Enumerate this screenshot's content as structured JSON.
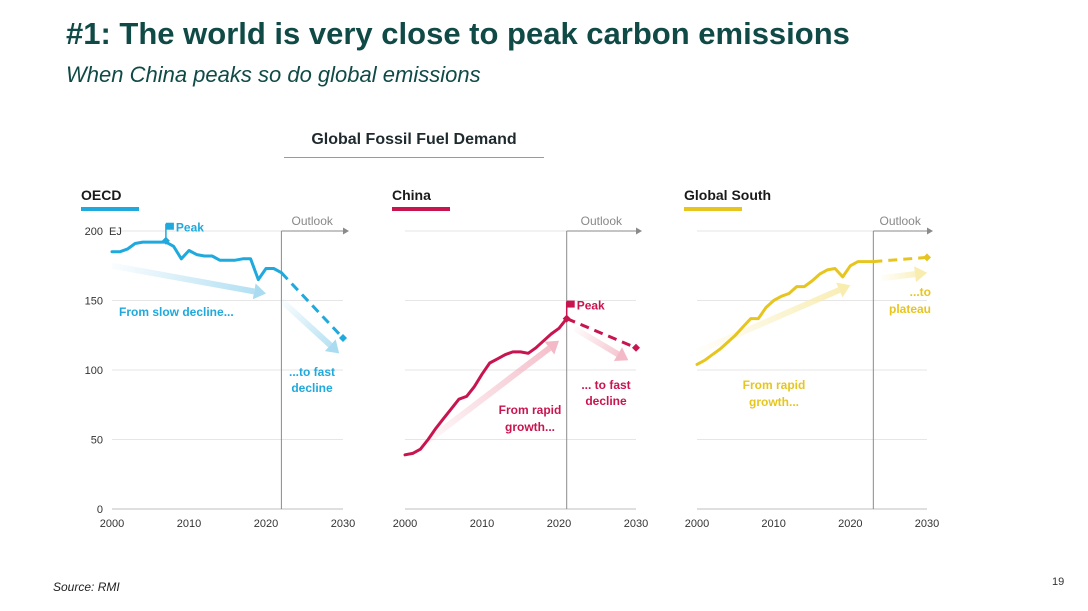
{
  "slide": {
    "title": "#1: The world is very close to peak carbon emissions",
    "subtitle": "When China peaks so do global emissions",
    "chart_heading": "Global Fossil Fuel Demand",
    "source": "Source: RMI",
    "page_number": "19"
  },
  "chart_data": [
    {
      "type": "line",
      "panel_title": "OECD",
      "color": "#1fa9dc",
      "arrow_color": "#a9dcf1",
      "unit_label": "EJ",
      "x_ticks": [
        "2000",
        "2010",
        "2020",
        "2030"
      ],
      "y_ticks": [
        "0",
        "50",
        "100",
        "150",
        "200"
      ],
      "xlim": [
        2000,
        2030
      ],
      "ylim": [
        0,
        200
      ],
      "grid": true,
      "outlook_start": 2022,
      "outlook_label": "Outlook",
      "historical": {
        "x": [
          2000,
          2001,
          2002,
          2003,
          2004,
          2005,
          2006,
          2007,
          2008,
          2009,
          2010,
          2011,
          2012,
          2013,
          2014,
          2015,
          2016,
          2017,
          2018,
          2019,
          2020,
          2021,
          2022
        ],
        "y": [
          185,
          185,
          187,
          191,
          192,
          192,
          192,
          192,
          189,
          180,
          186,
          183,
          182,
          182,
          179,
          179,
          179,
          180,
          180,
          165,
          173,
          173,
          170
        ]
      },
      "projection": {
        "x": [
          2022,
          2030
        ],
        "y": [
          170,
          123
        ]
      },
      "peak": {
        "label": "Peak",
        "x": 2007,
        "y": 193
      },
      "annotations": [
        "From slow decline...",
        "...to fast decline"
      ]
    },
    {
      "type": "line",
      "panel_title": "China",
      "color": "#c8144f",
      "arrow_color": "#f3b9c6",
      "x_ticks": [
        "2000",
        "2010",
        "2020",
        "2030"
      ],
      "xlim": [
        2000,
        2030
      ],
      "ylim": [
        0,
        200
      ],
      "grid": true,
      "outlook_start": 2021,
      "outlook_label": "Outlook",
      "historical": {
        "x": [
          2000,
          2001,
          2002,
          2003,
          2004,
          2005,
          2006,
          2007,
          2008,
          2009,
          2010,
          2011,
          2012,
          2013,
          2014,
          2015,
          2016,
          2017,
          2018,
          2019,
          2020,
          2021
        ],
        "y": [
          39,
          40,
          43,
          50,
          58,
          65,
          72,
          79,
          81,
          88,
          97,
          105,
          108,
          111,
          113,
          113,
          112,
          116,
          121,
          126,
          130,
          137
        ]
      },
      "projection": {
        "x": [
          2021,
          2030
        ],
        "y": [
          137,
          116
        ]
      },
      "peak": {
        "label": "Peak",
        "x": 2021,
        "y": 137
      },
      "annotations": [
        "From rapid growth...",
        "... to fast decline"
      ]
    },
    {
      "type": "line",
      "panel_title": "Global South",
      "color": "#e7c51f",
      "arrow_color": "#f8ecae",
      "x_ticks": [
        "2000",
        "2010",
        "2020",
        "2030"
      ],
      "xlim": [
        2000,
        2030
      ],
      "ylim": [
        0,
        200
      ],
      "grid": true,
      "outlook_start": 2023,
      "outlook_label": "Outlook",
      "historical": {
        "x": [
          2000,
          2001,
          2002,
          2003,
          2004,
          2005,
          2006,
          2007,
          2008,
          2009,
          2010,
          2011,
          2012,
          2013,
          2014,
          2015,
          2016,
          2017,
          2018,
          2019,
          2020,
          2021,
          2022,
          2023
        ],
        "y": [
          104,
          107,
          111,
          115,
          120,
          125,
          131,
          137,
          137,
          145,
          150,
          153,
          155,
          160,
          160,
          164,
          169,
          172,
          173,
          167,
          175,
          178,
          178,
          178
        ]
      },
      "projection": {
        "x": [
          2023,
          2030
        ],
        "y": [
          178,
          181
        ]
      },
      "annotations": [
        "From rapid growth...",
        "...to plateau"
      ]
    }
  ]
}
